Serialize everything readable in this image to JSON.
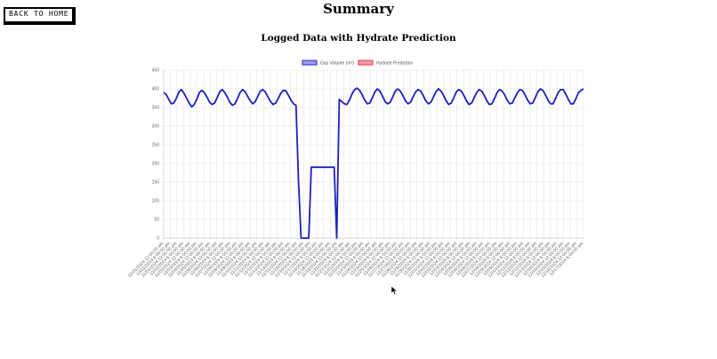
{
  "header": {
    "back_label": "BACK TO HOME",
    "title": "Summary"
  },
  "chart_data": {
    "type": "line",
    "title": "Logged Data with Hydrate Prediction",
    "legend": [
      {
        "name": "Gas Volume (m³)",
        "color": "#2b2bc8",
        "fill": "#9b9bea"
      },
      {
        "name": "Hydrate Prediction",
        "color": "#e83e4a",
        "fill": "#f39aa0"
      }
    ],
    "legend_position": "top",
    "grid": true,
    "ylim": [
      0,
      450
    ],
    "yticks": [
      0,
      50,
      100,
      150,
      200,
      250,
      300,
      350,
      400,
      450
    ],
    "x_tick_labels": [
      "10/31/2024 12:00:00 am",
      "10/31/2024 6:00:00 pm",
      "11/01/2024 12:00:00 pm",
      "11/02/2024 6:00:00 am",
      "11/03/2024 12:00:00 am",
      "11/03/2024 6:00:00 pm",
      "11/04/2024 12:00:00 pm",
      "11/05/2024 6:00:00 am",
      "11/06/2024 12:00:00 am",
      "11/06/2024 6:00:00 pm",
      "11/07/2024 12:00:00 pm",
      "11/08/2024 6:00:00 am",
      "11/09/2024 12:00:00 am",
      "11/09/2024 6:00:00 pm",
      "11/10/2024 12:00:00 pm",
      "11/11/2024 6:00:00 am",
      "11/12/2024 12:00:00 am",
      "11/12/2024 6:00:00 pm",
      "11/13/2024 12:00:00 pm",
      "11/14/2024 6:00:00 am",
      "11/15/2024 12:00:00 am",
      "11/15/2024 6:00:00 pm",
      "11/16/2024 12:00:00 pm",
      "11/17/2024 6:00:00 am",
      "11/18/2024 12:00:00 am",
      "11/18/2024 6:00:00 pm",
      "11/19/2024 12:00:00 pm",
      "11/20/2024 6:00:00 am",
      "11/21/2024 12:00:00 am",
      "11/21/2024 6:00:00 pm",
      "11/22/2024 12:00:00 pm",
      "11/23/2024 6:00:00 am",
      "11/24/2024 12:00:00 am",
      "11/24/2024 6:00:00 pm",
      "11/25/2024 12:00:00 pm",
      "11/26/2024 6:00:00 am",
      "11/27/2024 12:00:00 am",
      "11/27/2024 6:00:00 pm",
      "11/28/2024 12:00:00 pm",
      "11/29/2024 6:00:00 am",
      "11/30/2024 12:00:00 am",
      "11/30/2024 6:00:00 pm",
      "12/01/2024 12:00:00 pm",
      "12/02/2024 6:00:00 am",
      "12/03/2024 12:00:00 am",
      "12/03/2024 6:00:00 pm",
      "12/04/2024 12:00:00 pm",
      "12/05/2024 6:00:00 am",
      "12/06/2024 12:00:00 am",
      "12/06/2024 6:00:00 pm",
      "12/07/2024 12:00:00 pm",
      "12/08/2024 6:00:00 am",
      "12/09/2024 12:00:00 am",
      "12/09/2024 6:00:00 pm",
      "12/10/2024 12:00:00 pm",
      "12/11/2024 6:00:00 am",
      "12/12/2024 12:00:00 am",
      "12/12/2024 6:00:00 pm",
      "12/13/2024 12:00:00 pm",
      "12/14/2024 6:00:00 am",
      "12/15/2024 12:00:00 am",
      "12/15/2024 6:00:00 pm",
      "12/16/2024 12:00:00 pm",
      "12/17/2024 6:00:00 am"
    ],
    "series": [
      {
        "name": "Gas Volume (m³)",
        "color": "#1f1fbf",
        "values": [
          390,
          385,
          372,
          360,
          362,
          375,
          392,
          398,
          388,
          375,
          362,
          352,
          358,
          372,
          390,
          396,
          390,
          378,
          365,
          358,
          362,
          376,
          392,
          398,
          390,
          378,
          364,
          356,
          360,
          374,
          390,
          398,
          392,
          380,
          368,
          360,
          366,
          380,
          394,
          398,
          391,
          378,
          366,
          358,
          362,
          374,
          388,
          396,
          395,
          383,
          370,
          360,
          356,
          150,
          0,
          0,
          0,
          0,
          190,
          190,
          190,
          190,
          190,
          190,
          190,
          190,
          190,
          190,
          0,
          372,
          366,
          360,
          358,
          370,
          386,
          398,
          402,
          396,
          384,
          370,
          360,
          362,
          376,
          392,
          400,
          394,
          380,
          366,
          360,
          364,
          378,
          394,
          400,
          394,
          382,
          368,
          360,
          364,
          378,
          392,
          398,
          394,
          382,
          368,
          360,
          364,
          378,
          392,
          400,
          394,
          382,
          368,
          358,
          362,
          376,
          392,
          398,
          394,
          382,
          368,
          358,
          362,
          376,
          390,
          398,
          394,
          382,
          368,
          358,
          360,
          374,
          390,
          398,
          394,
          384,
          370,
          360,
          362,
          376,
          390,
          398,
          396,
          384,
          370,
          360,
          362,
          376,
          392,
          400,
          396,
          384,
          370,
          360,
          360,
          374,
          390,
          398,
          398,
          386,
          372,
          360,
          360,
          374,
          390,
          396,
          400
        ]
      },
      {
        "name": "Hydrate Prediction",
        "color": "#e83e4a",
        "values": []
      }
    ]
  }
}
